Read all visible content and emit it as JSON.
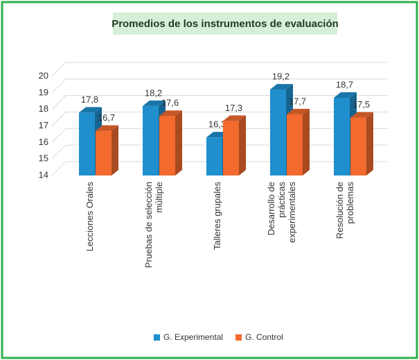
{
  "chart_data": {
    "type": "bar3d",
    "title": "Promedios de los instrumentos de evaluación",
    "categories": [
      "Lecciones Orales",
      "Pruebas de selección múltiple",
      "Talleres grupales",
      "Desarrollo de prácticas experimentales",
      "Resolución de problemas"
    ],
    "series": [
      {
        "name": "G. Experimental",
        "color": "#1f8fce",
        "values": [
          17.8,
          18.2,
          16.3,
          19.2,
          18.7
        ],
        "value_labels": [
          "17,8",
          "18,2",
          "16,3",
          "19,2",
          "18,7"
        ]
      },
      {
        "name": "G. Control",
        "color": "#f26a2e",
        "values": [
          16.7,
          17.6,
          17.3,
          17.7,
          17.5
        ],
        "value_labels": [
          "16,7",
          "17,6",
          "17,3",
          "17,7",
          "17,5"
        ]
      }
    ],
    "ylim": [
      14,
      20
    ],
    "yticks": [
      14,
      15,
      16,
      17,
      18,
      19,
      20
    ],
    "grid": true,
    "legend": "bottom"
  }
}
